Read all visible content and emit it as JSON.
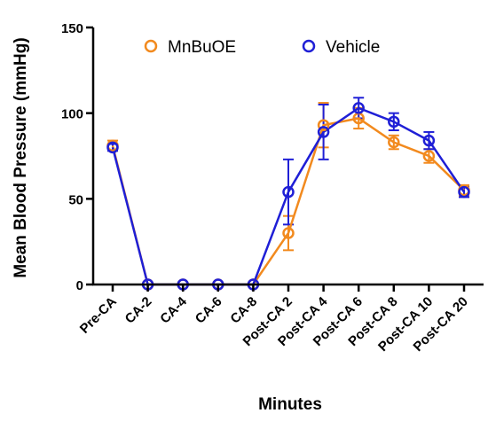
{
  "chart_data": {
    "type": "line",
    "title": "",
    "xlabel": "Minutes",
    "ylabel": "Mean Blood Pressure (mmHg)",
    "ylim": [
      0,
      150
    ],
    "yticks": [
      0,
      50,
      100,
      150
    ],
    "categories": [
      "Pre-CA",
      "CA-2",
      "CA-4",
      "CA-6",
      "CA-8",
      "Post-CA 2",
      "Post-CA 4",
      "Post-CA 6",
      "Post-CA 8",
      "Post-CA 10",
      "Post-CA 20"
    ],
    "legend_position": "top",
    "grid": false,
    "series": [
      {
        "name": "MnBuOE",
        "color": "#f28a1e",
        "values": [
          81,
          0,
          0,
          0,
          0,
          30,
          93,
          97,
          83,
          75,
          55
        ],
        "error": [
          3,
          0,
          0,
          0,
          0,
          10,
          13,
          6,
          4,
          4,
          3
        ]
      },
      {
        "name": "Vehicle",
        "color": "#1f1fd6",
        "values": [
          80,
          0,
          0,
          0,
          0,
          54,
          89,
          103,
          95,
          84,
          54
        ],
        "error": [
          2,
          0,
          0,
          0,
          0,
          19,
          16,
          6,
          5,
          5,
          3
        ]
      }
    ]
  }
}
